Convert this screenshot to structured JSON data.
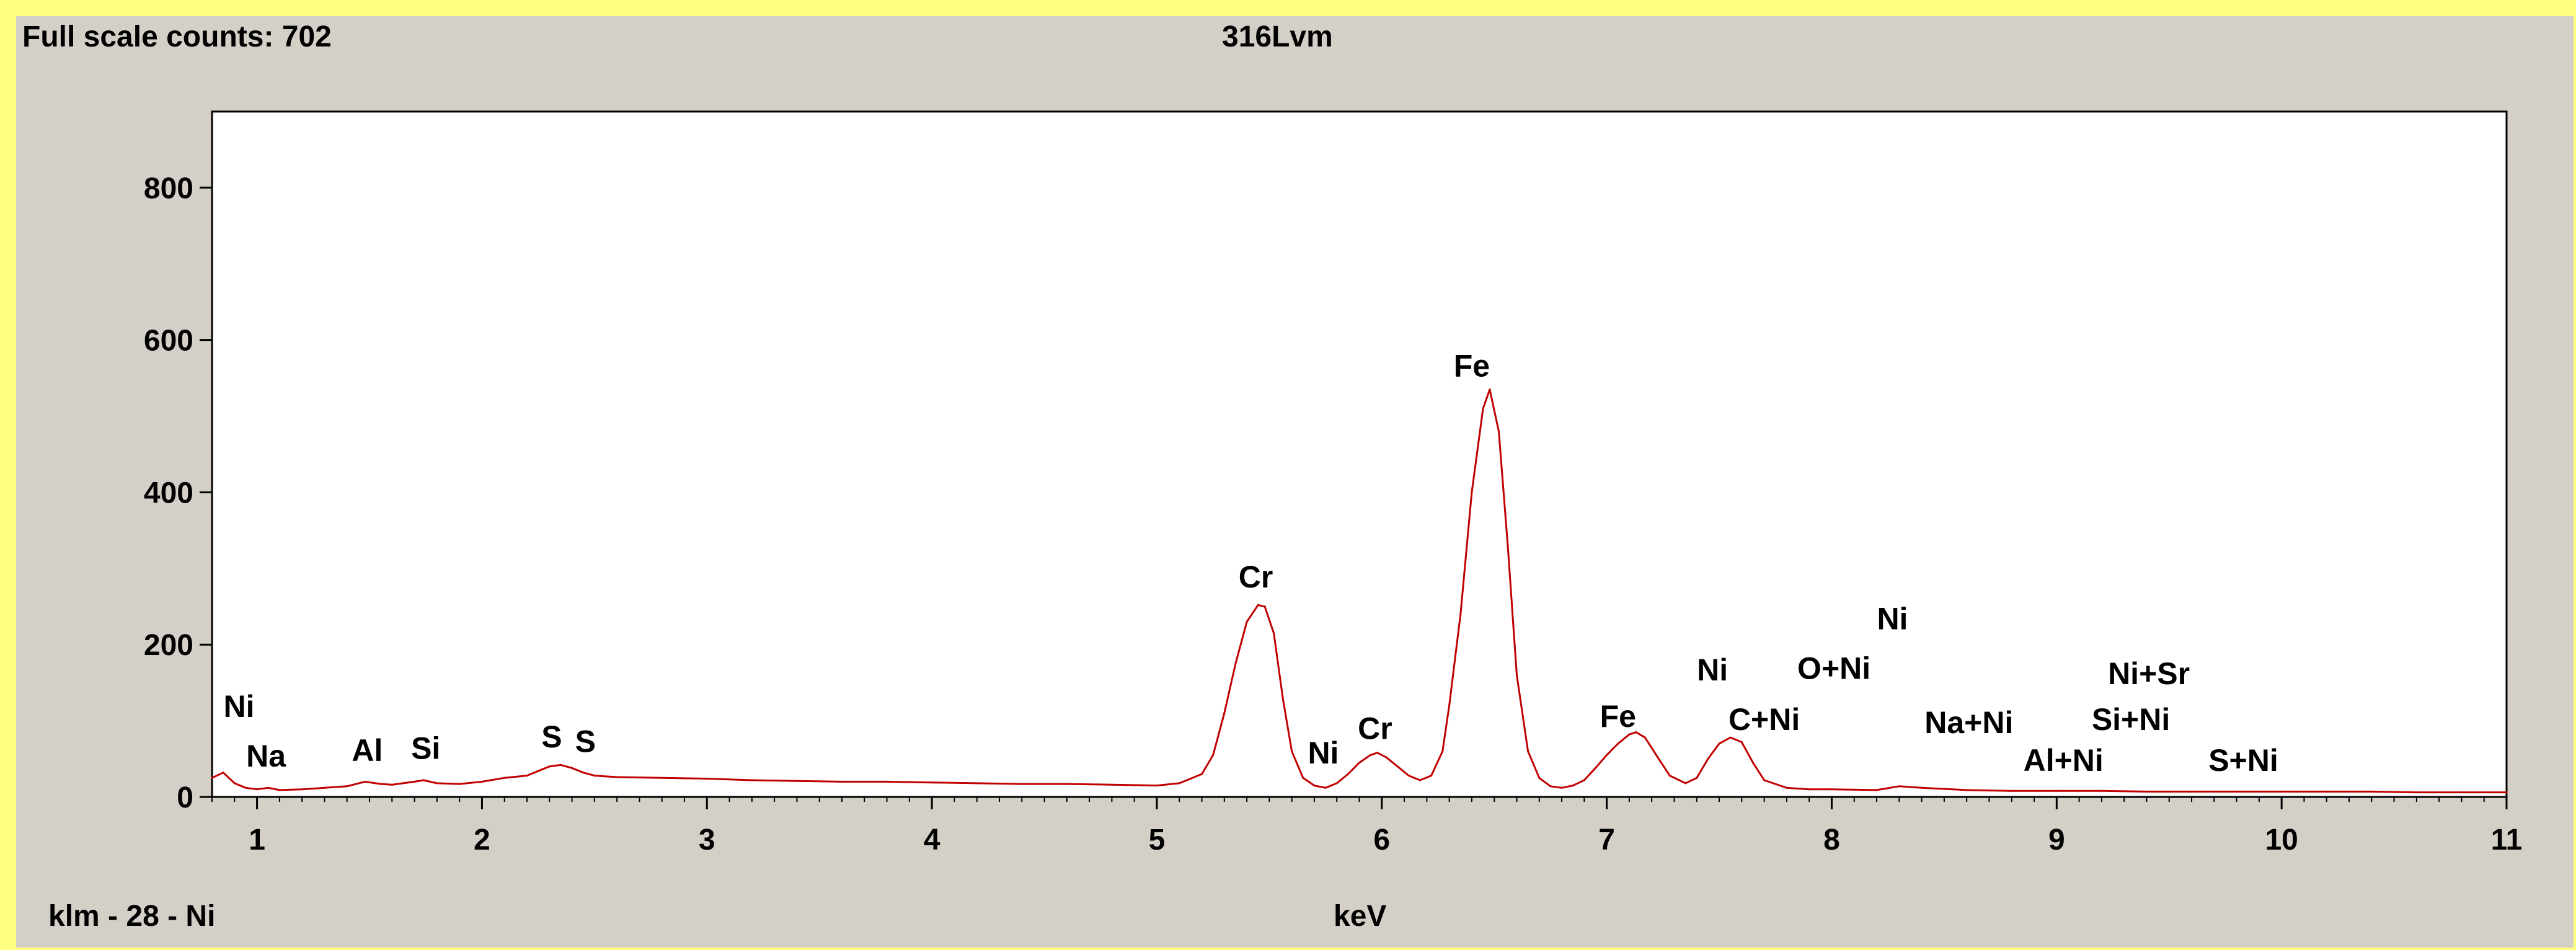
{
  "header": {
    "full_scale": "Full scale counts: 702",
    "sample": "316Lvm"
  },
  "footer": {
    "cursor_label": "klm - 28 - Ni",
    "x_unit": "keV"
  },
  "colors": {
    "spectrum": "#c00000",
    "background": "#d4d0c8",
    "plot_background": "#ffffff",
    "frame_accent": "#ffff80"
  },
  "chart_data": {
    "type": "line",
    "title": "316Lvm",
    "xlabel": "keV",
    "ylabel": "",
    "xlim": [
      0.8,
      11.0
    ],
    "ylim": [
      0,
      900
    ],
    "x_ticks": [
      1,
      2,
      3,
      4,
      5,
      6,
      7,
      8,
      9,
      10,
      11
    ],
    "y_ticks": [
      0,
      200,
      400,
      600,
      800
    ],
    "grid": false,
    "series": [
      {
        "x": [
          0.8,
          0.85,
          0.9,
          0.95,
          1.0,
          1.05,
          1.1,
          1.2,
          1.3,
          1.4,
          1.48,
          1.55,
          1.6,
          1.7,
          1.74,
          1.8,
          1.9,
          2.0,
          2.1,
          2.2,
          2.25,
          2.3,
          2.35,
          2.4,
          2.45,
          2.5,
          2.6,
          2.8,
          3.0,
          3.2,
          3.4,
          3.6,
          3.8,
          4.0,
          4.2,
          4.4,
          4.6,
          4.8,
          5.0,
          5.1,
          5.2,
          5.25,
          5.3,
          5.35,
          5.4,
          5.45,
          5.48,
          5.52,
          5.56,
          5.6,
          5.65,
          5.7,
          5.75,
          5.8,
          5.85,
          5.9,
          5.95,
          5.98,
          6.02,
          6.07,
          6.12,
          6.17,
          6.22,
          6.27,
          6.3,
          6.35,
          6.4,
          6.45,
          6.48,
          6.52,
          6.56,
          6.6,
          6.65,
          6.7,
          6.75,
          6.8,
          6.85,
          6.9,
          6.95,
          7.0,
          7.05,
          7.1,
          7.13,
          7.17,
          7.22,
          7.28,
          7.35,
          7.4,
          7.45,
          7.5,
          7.55,
          7.6,
          7.65,
          7.7,
          7.8,
          7.9,
          8.0,
          8.2,
          8.3,
          8.4,
          8.6,
          8.8,
          9.0,
          9.2,
          9.4,
          9.6,
          9.8,
          10.0,
          10.2,
          10.4,
          10.6,
          10.8,
          11.0
        ],
        "y": [
          25,
          32,
          18,
          12,
          10,
          12,
          9,
          10,
          12,
          14,
          20,
          17,
          16,
          20,
          22,
          18,
          17,
          20,
          25,
          28,
          34,
          40,
          42,
          38,
          32,
          28,
          26,
          25,
          24,
          22,
          21,
          20,
          20,
          19,
          18,
          17,
          17,
          16,
          15,
          18,
          30,
          55,
          110,
          175,
          230,
          252,
          250,
          215,
          130,
          60,
          25,
          15,
          12,
          18,
          30,
          45,
          55,
          58,
          52,
          40,
          28,
          22,
          28,
          60,
          120,
          240,
          400,
          510,
          535,
          480,
          330,
          160,
          60,
          25,
          14,
          12,
          15,
          22,
          38,
          55,
          70,
          82,
          85,
          78,
          55,
          28,
          18,
          25,
          50,
          70,
          78,
          72,
          45,
          22,
          12,
          10,
          10,
          9,
          14,
          12,
          9,
          8,
          8,
          8,
          7,
          7,
          7,
          7,
          7,
          7,
          6,
          6,
          6
        ]
      }
    ],
    "annotations": [
      {
        "text": "Ni",
        "x": 0.92,
        "y": 105
      },
      {
        "text": "Na",
        "x": 1.04,
        "y": 40
      },
      {
        "text": "Al",
        "x": 1.49,
        "y": 47
      },
      {
        "text": "Si",
        "x": 1.75,
        "y": 50
      },
      {
        "text": "S",
        "x": 2.31,
        "y": 65
      },
      {
        "text": "S",
        "x": 2.46,
        "y": 59
      },
      {
        "text": "Cr",
        "x": 5.44,
        "y": 275
      },
      {
        "text": "Ni",
        "x": 5.74,
        "y": 44
      },
      {
        "text": "Cr",
        "x": 5.97,
        "y": 76
      },
      {
        "text": "Fe",
        "x": 6.4,
        "y": 552
      },
      {
        "text": "Fe",
        "x": 7.05,
        "y": 92
      },
      {
        "text": "Ni",
        "x": 7.47,
        "y": 153
      },
      {
        "text": "C+Ni",
        "x": 7.7,
        "y": 88
      },
      {
        "text": "O+Ni",
        "x": 8.01,
        "y": 155
      },
      {
        "text": "Ni",
        "x": 8.27,
        "y": 220
      },
      {
        "text": "Na+Ni",
        "x": 8.61,
        "y": 84
      },
      {
        "text": "Si+Ni",
        "x": 9.33,
        "y": 88
      },
      {
        "text": "Ni+Sr",
        "x": 9.41,
        "y": 148
      },
      {
        "text": "Al+Ni",
        "x": 9.03,
        "y": 34
      },
      {
        "text": "S+Ni",
        "x": 9.83,
        "y": 34
      }
    ]
  }
}
